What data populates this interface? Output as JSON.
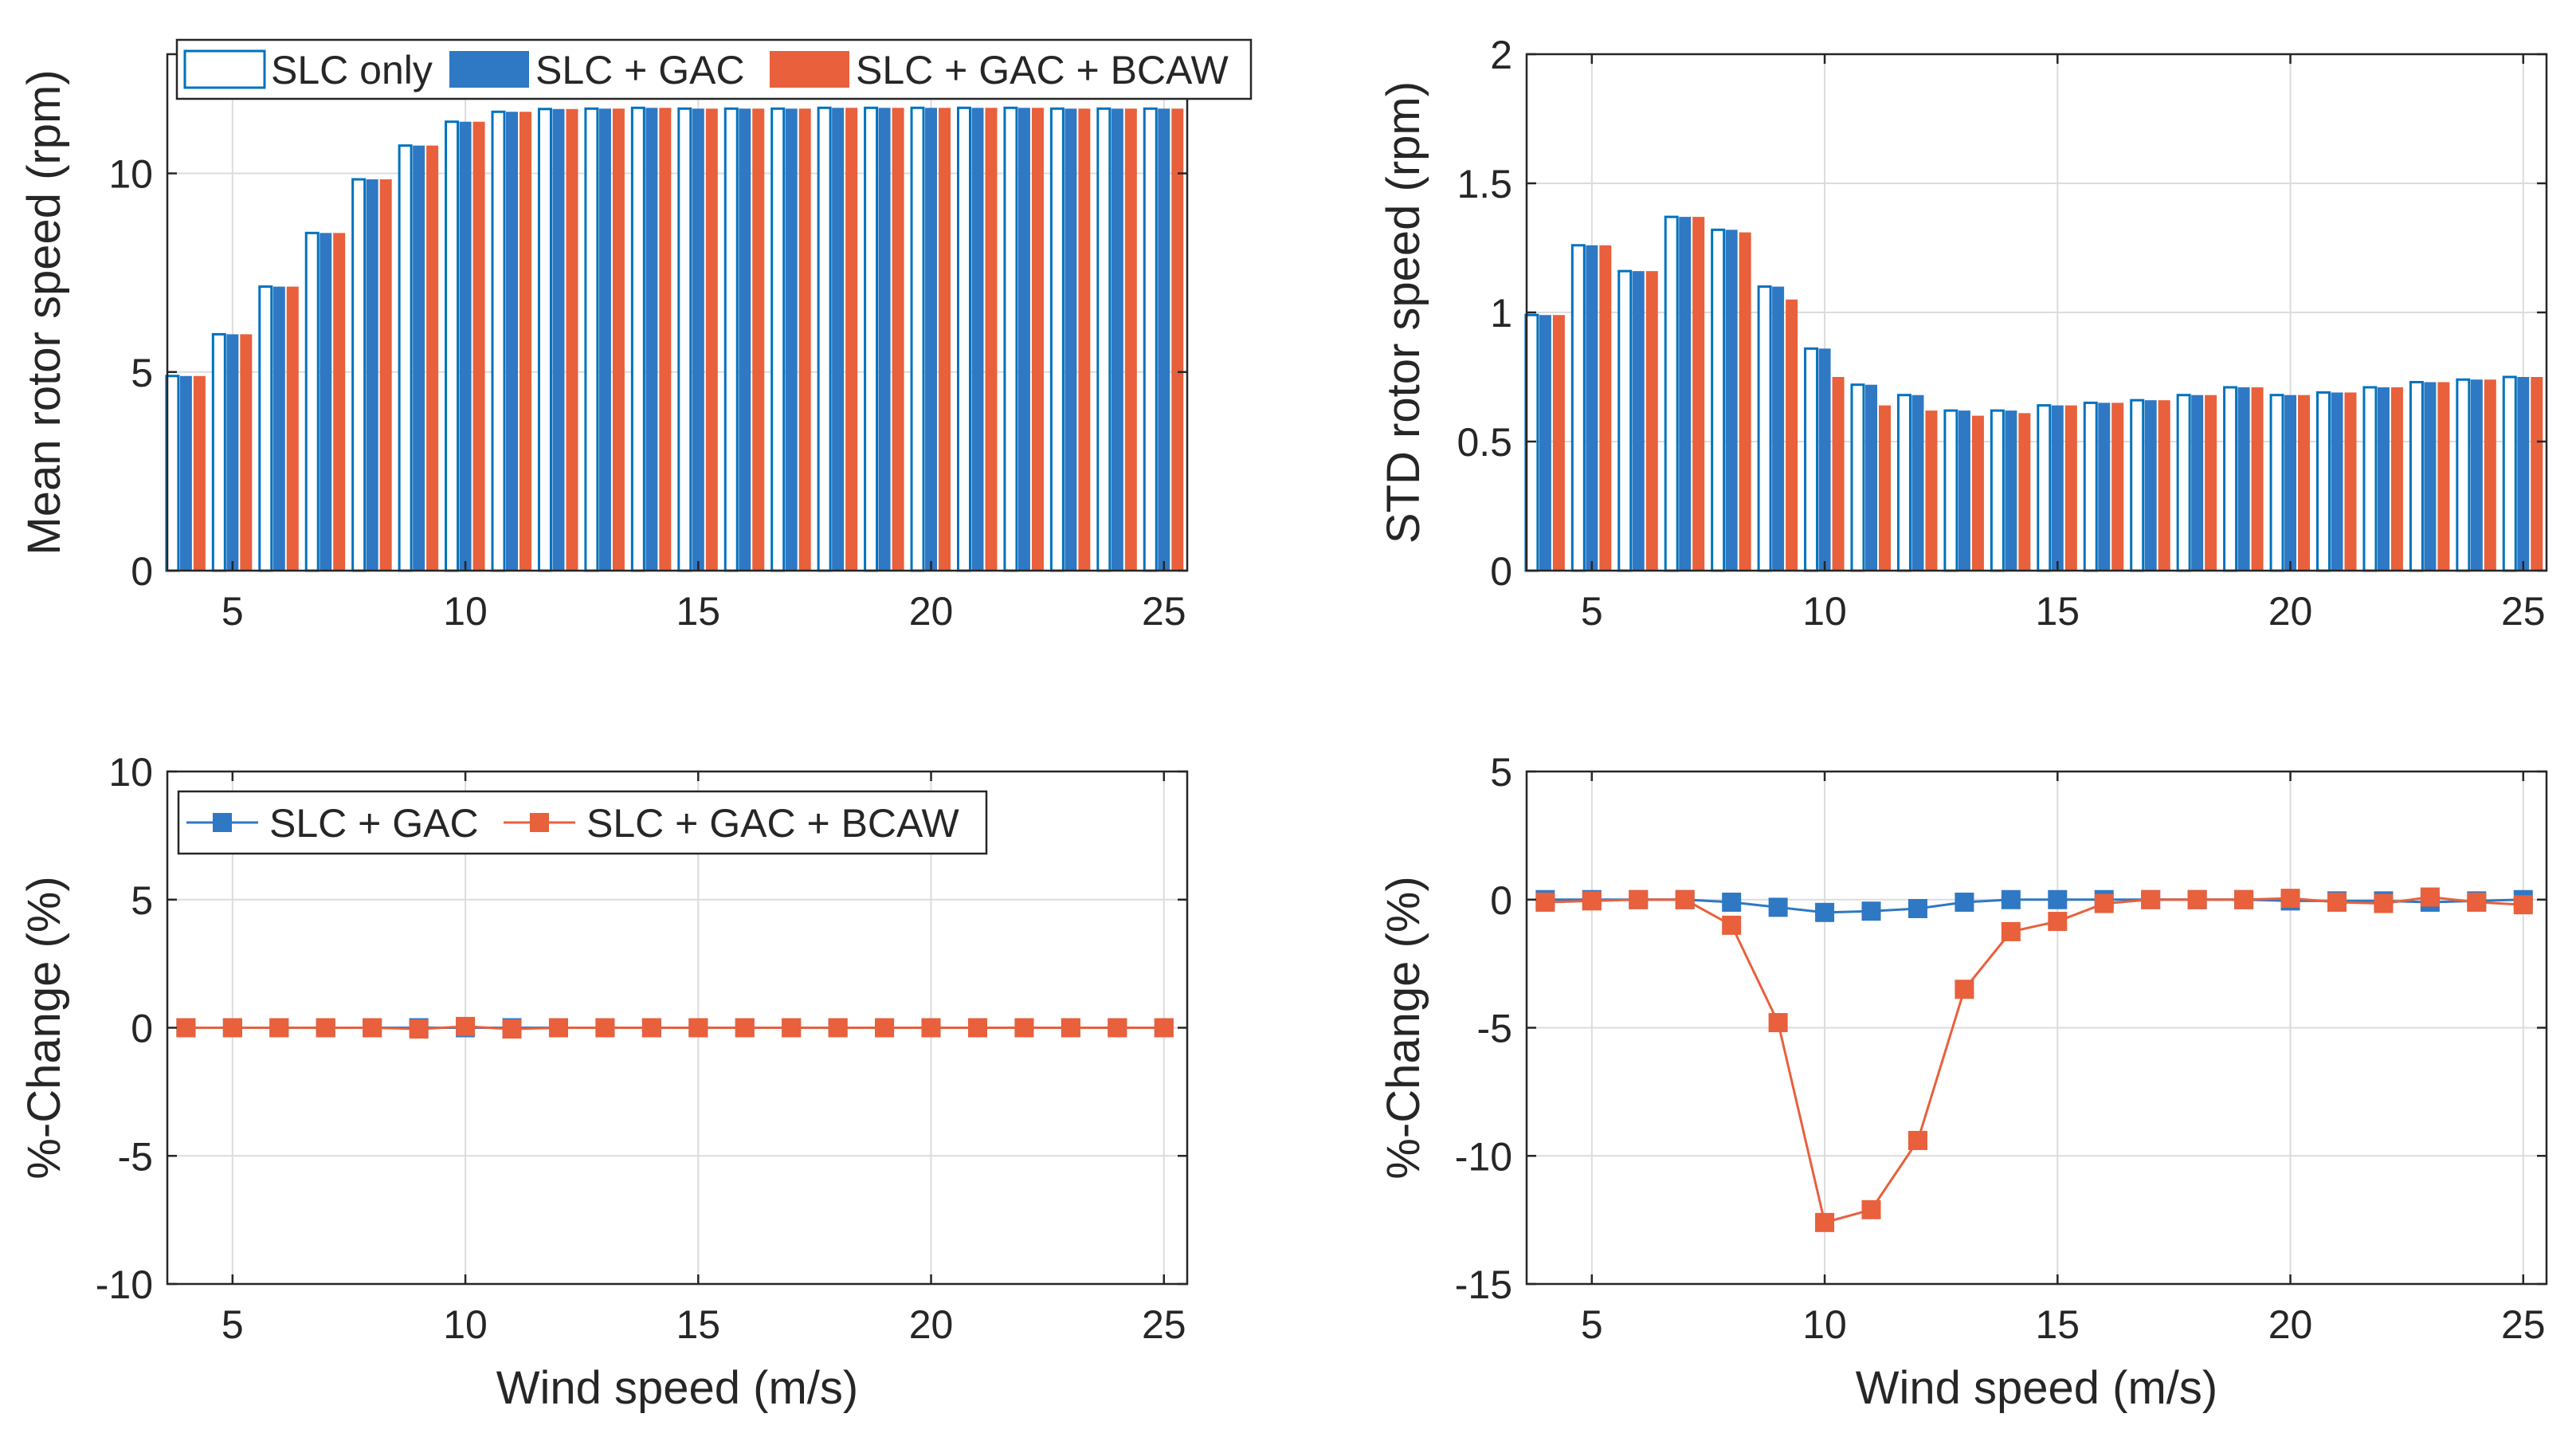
{
  "chart_data": [
    {
      "id": "mean",
      "type": "bar",
      "title": "",
      "xlabel": "",
      "ylabel": "Mean rotor speed (rpm)",
      "xlim": [
        3.6,
        25.5
      ],
      "ylim": [
        0,
        13
      ],
      "xticks": [
        5,
        10,
        15,
        20,
        25
      ],
      "yticks": [
        0,
        5,
        10
      ],
      "x": [
        4,
        5,
        6,
        7,
        8,
        9,
        10,
        11,
        12,
        13,
        14,
        15,
        16,
        17,
        18,
        19,
        20,
        21,
        22,
        23,
        24,
        25
      ],
      "series": [
        {
          "name": "SLC only",
          "color": "#0072BD",
          "style": "outline",
          "values": [
            4.9,
            5.95,
            7.15,
            8.5,
            9.85,
            10.7,
            11.3,
            11.55,
            11.62,
            11.63,
            11.65,
            11.63,
            11.63,
            11.63,
            11.65,
            11.65,
            11.65,
            11.65,
            11.65,
            11.63,
            11.63,
            11.63
          ]
        },
        {
          "name": "SLC + GAC",
          "color": "#2F78C4",
          "style": "filled",
          "values": [
            4.9,
            5.95,
            7.15,
            8.5,
            9.85,
            10.7,
            11.3,
            11.55,
            11.62,
            11.63,
            11.65,
            11.63,
            11.63,
            11.63,
            11.65,
            11.65,
            11.65,
            11.65,
            11.65,
            11.63,
            11.63,
            11.63
          ]
        },
        {
          "name": "SLC + GAC + BCAW",
          "color": "#E8603C",
          "style": "filled",
          "values": [
            4.9,
            5.95,
            7.15,
            8.5,
            9.85,
            10.7,
            11.3,
            11.55,
            11.62,
            11.63,
            11.65,
            11.63,
            11.63,
            11.63,
            11.65,
            11.65,
            11.65,
            11.65,
            11.65,
            11.63,
            11.63,
            11.63
          ]
        }
      ],
      "legend": {
        "location": "top",
        "entries": [
          "SLC only",
          "SLC + GAC",
          "SLC + GAC + BCAW"
        ]
      }
    },
    {
      "id": "std",
      "type": "bar",
      "title": "",
      "xlabel": "",
      "ylabel": "STD rotor speed (rpm)",
      "xlim": [
        3.6,
        25.5
      ],
      "ylim": [
        0,
        2
      ],
      "xticks": [
        5,
        10,
        15,
        20,
        25
      ],
      "yticks": [
        0,
        0.5,
        1,
        1.5,
        2
      ],
      "x": [
        4,
        5,
        6,
        7,
        8,
        9,
        10,
        11,
        12,
        13,
        14,
        15,
        16,
        17,
        18,
        19,
        20,
        21,
        22,
        23,
        24,
        25
      ],
      "series": [
        {
          "name": "SLC only",
          "color": "#0072BD",
          "style": "outline",
          "values": [
            0.99,
            1.26,
            1.16,
            1.37,
            1.32,
            1.1,
            0.86,
            0.72,
            0.68,
            0.62,
            0.62,
            0.64,
            0.65,
            0.66,
            0.68,
            0.71,
            0.68,
            0.69,
            0.71,
            0.73,
            0.74,
            0.75
          ]
        },
        {
          "name": "SLC + GAC",
          "color": "#2F78C4",
          "style": "filled",
          "values": [
            0.99,
            1.26,
            1.16,
            1.37,
            1.32,
            1.1,
            0.86,
            0.72,
            0.68,
            0.62,
            0.62,
            0.64,
            0.65,
            0.66,
            0.68,
            0.71,
            0.68,
            0.69,
            0.71,
            0.73,
            0.74,
            0.75
          ]
        },
        {
          "name": "SLC + GAC + BCAW",
          "color": "#E8603C",
          "style": "filled",
          "values": [
            0.99,
            1.26,
            1.16,
            1.37,
            1.31,
            1.05,
            0.75,
            0.64,
            0.62,
            0.6,
            0.61,
            0.64,
            0.65,
            0.66,
            0.68,
            0.71,
            0.68,
            0.69,
            0.71,
            0.73,
            0.74,
            0.75
          ]
        }
      ]
    },
    {
      "id": "mean_change",
      "type": "line",
      "title": "",
      "xlabel": "Wind speed (m/s)",
      "ylabel": "%-Change (%)",
      "xlim": [
        3.6,
        25.5
      ],
      "ylim": [
        -10,
        10
      ],
      "xticks": [
        5,
        10,
        15,
        20,
        25
      ],
      "yticks": [
        -10,
        -5,
        0,
        5,
        10
      ],
      "x": [
        4,
        5,
        6,
        7,
        8,
        9,
        10,
        11,
        12,
        13,
        14,
        15,
        16,
        17,
        18,
        19,
        20,
        21,
        22,
        23,
        24,
        25
      ],
      "series": [
        {
          "name": "SLC + GAC",
          "color": "#2F78C4",
          "values": [
            0,
            0,
            0,
            0,
            0,
            0,
            0,
            0,
            0,
            0,
            0,
            0,
            0,
            0,
            0,
            0,
            0,
            0,
            0,
            0,
            0,
            0
          ]
        },
        {
          "name": "SLC + GAC + BCAW",
          "color": "#E8603C",
          "values": [
            0,
            0,
            0,
            0,
            0,
            -0.05,
            0.05,
            -0.05,
            0,
            0,
            0,
            0,
            0,
            0,
            0,
            0,
            0,
            0,
            0,
            0,
            0,
            0
          ]
        }
      ],
      "legend": {
        "location": "top-left",
        "entries": [
          "SLC + GAC",
          "SLC + GAC + BCAW"
        ]
      }
    },
    {
      "id": "std_change",
      "type": "line",
      "title": "",
      "xlabel": "Wind speed (m/s)",
      "ylabel": "%-Change (%)",
      "xlim": [
        3.6,
        25.5
      ],
      "ylim": [
        -15,
        5
      ],
      "xticks": [
        5,
        10,
        15,
        20,
        25
      ],
      "yticks": [
        -15,
        -10,
        -5,
        0,
        5
      ],
      "x": [
        4,
        5,
        6,
        7,
        8,
        9,
        10,
        11,
        12,
        13,
        14,
        15,
        16,
        17,
        18,
        19,
        20,
        21,
        22,
        23,
        24,
        25
      ],
      "series": [
        {
          "name": "SLC + GAC",
          "color": "#2F78C4",
          "values": [
            0,
            0,
            0,
            0,
            -0.1,
            -0.3,
            -0.5,
            -0.45,
            -0.35,
            -0.1,
            0,
            0,
            0,
            0,
            0,
            0,
            -0.05,
            -0.05,
            -0.05,
            -0.1,
            -0.05,
            0
          ]
        },
        {
          "name": "SLC + GAC + BCAW",
          "color": "#E8603C",
          "values": [
            -0.1,
            -0.05,
            0,
            0,
            -1.0,
            -4.8,
            -12.6,
            -12.1,
            -9.4,
            -3.5,
            -1.25,
            -0.85,
            -0.15,
            0,
            0,
            0,
            0.05,
            -0.1,
            -0.15,
            0.1,
            -0.1,
            -0.2
          ]
        }
      ]
    }
  ]
}
